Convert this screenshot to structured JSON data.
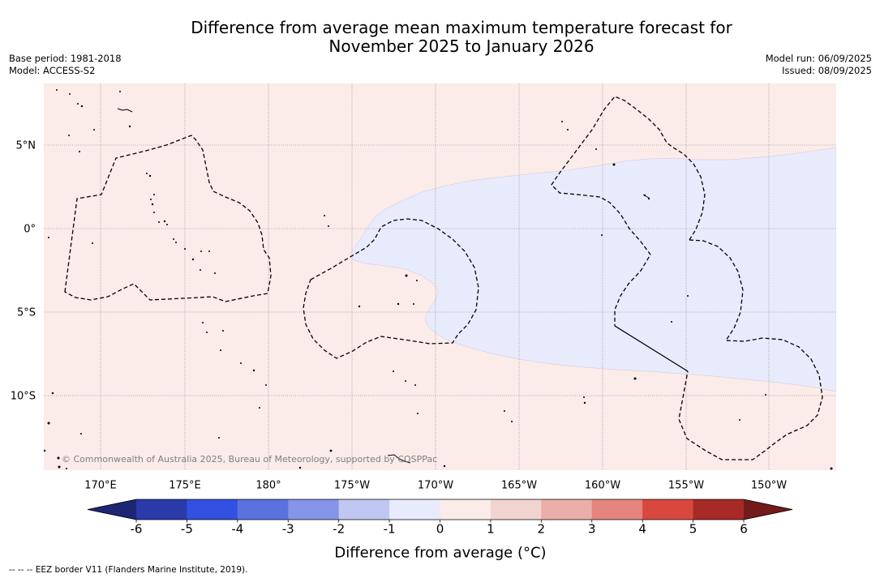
{
  "title": {
    "line1": "Difference from average mean maximum temperature forecast for",
    "line2": "November 2025 to January 2026"
  },
  "info_left": {
    "base_period": "Base period: 1981-2018",
    "model": "Model: ACCESS-S2"
  },
  "info_right": {
    "model_run": "Model run: 06/09/2025",
    "issued": "Issued: 08/09/2025"
  },
  "map": {
    "grid": true,
    "lat_labels": [
      "5°N",
      "0°",
      "5°S",
      "10°S"
    ],
    "lon_labels": [
      "170°E",
      "175°E",
      "180°",
      "175°W",
      "170°W",
      "165°W",
      "160°W",
      "155°W",
      "150°W"
    ],
    "copyright": "© Commonwealth of Australia 2025, Bureau of Meteorology, supported by COSPPac"
  },
  "colorbar": {
    "label": "Difference from average (°C)",
    "ticks": [
      "-6",
      "-5",
      "-4",
      "-3",
      "-2",
      "-1",
      "0",
      "1",
      "2",
      "3",
      "4",
      "5",
      "6"
    ],
    "under_color": "#1c2673",
    "colors": [
      "#2a3aa8",
      "#3351e0",
      "#5a72e0",
      "#8495ea",
      "#c0c7f3",
      "#e8ebfb",
      "#fbebe9",
      "#f0d4cf",
      "#ebaea8",
      "#e4847e",
      "#d8483f",
      "#a72a27"
    ],
    "over_color": "#731b1a"
  },
  "legend": {
    "eez_border": "-- -- -- EEZ border V11 (Flanders Marine Institute, 2019)."
  }
}
